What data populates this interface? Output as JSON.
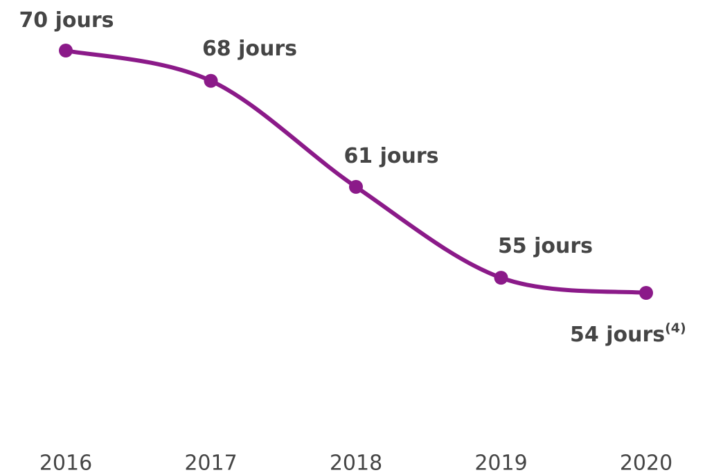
{
  "chart_data": {
    "type": "line",
    "categories": [
      "2016",
      "2017",
      "2018",
      "2019",
      "2020"
    ],
    "series": [
      {
        "color": "#8b1a89",
        "values": [
          70,
          68,
          61,
          55,
          54
        ],
        "value_labels": [
          "70 jours",
          "68 jours",
          "61 jours",
          "55 jours",
          "54 jours"
        ],
        "value_label_notes": [
          null,
          null,
          null,
          null,
          "(4)"
        ]
      }
    ],
    "ylim": [
      50,
      72
    ],
    "grid": false
  }
}
